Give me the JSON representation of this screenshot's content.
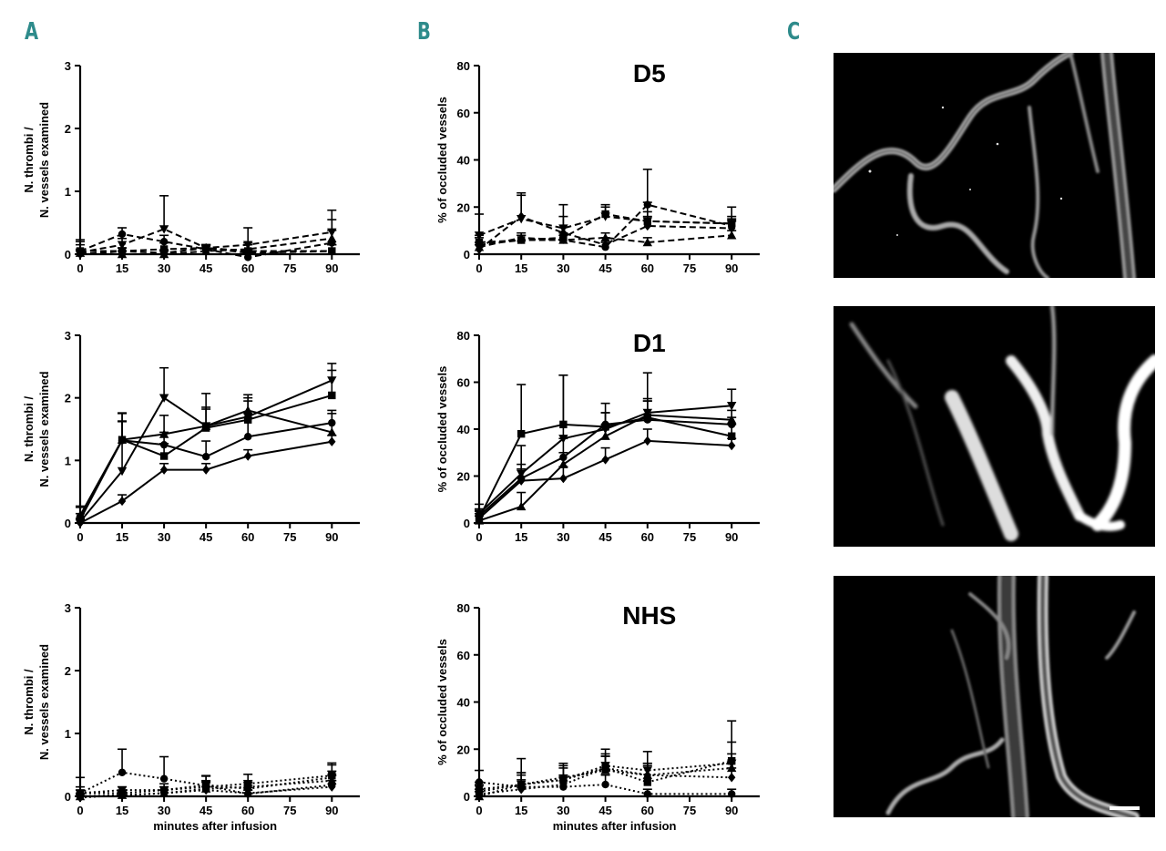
{
  "panel_labels": [
    "A",
    "B",
    "C"
  ],
  "micrograph_names": [
    "micrograph-D5",
    "micrograph-D1",
    "micrograph-NHS"
  ],
  "chart_data": [
    {
      "id": "A1",
      "type": "line",
      "group": "D5",
      "line_style": "dashed",
      "title": "",
      "xlabel": "",
      "ylabel": "N. thrombi / N. vessels examined",
      "ylabel_lines": [
        "N. thrombi /",
        "N. vessels examined"
      ],
      "x_ticks": [
        0,
        15,
        30,
        45,
        60,
        75,
        90
      ],
      "y_ticks": [
        0,
        1,
        2,
        3
      ],
      "xlim": [
        0,
        100
      ],
      "ylim": [
        0,
        3
      ],
      "x": [
        0,
        15,
        30,
        45,
        60,
        90
      ],
      "series": [
        {
          "name": "circle",
          "values": [
            0.05,
            0.32,
            0.2,
            0.08,
            -0.05,
            0.18
          ],
          "err": [
            0.15,
            0.1,
            0.1,
            0.05,
            0.1,
            0.2
          ]
        },
        {
          "name": "square",
          "values": [
            0.05,
            0.05,
            0.08,
            0.1,
            0.05,
            0.05
          ],
          "err": [
            0.1,
            0.05,
            0.1,
            0.05,
            0.1,
            0.1
          ]
        },
        {
          "name": "triangle",
          "values": [
            0.02,
            0.0,
            0.0,
            0.05,
            0.08,
            0.25
          ],
          "err": [
            0.05,
            0.05,
            0.05,
            0.05,
            0.1,
            0.3
          ]
        },
        {
          "name": "inverted-triangle",
          "values": [
            0.03,
            0.15,
            0.4,
            0.1,
            0.15,
            0.35
          ],
          "err": [
            0.2,
            0.1,
            0.53,
            0.05,
            0.27,
            0.35
          ]
        },
        {
          "name": "diamond",
          "values": [
            0.0,
            0.05,
            0.02,
            0.1,
            0.02,
            0.05
          ],
          "err": [
            0.05,
            0.05,
            0.05,
            0.05,
            0.05,
            0.1
          ]
        }
      ]
    },
    {
      "id": "A2",
      "type": "line",
      "group": "D1",
      "line_style": "solid",
      "title": "",
      "xlabel": "",
      "ylabel": "N. thrombi / N. vessels examined",
      "ylabel_lines": [
        "N. thrombi /",
        "N. vessels examined"
      ],
      "x_ticks": [
        0,
        15,
        30,
        45,
        60,
        75,
        90
      ],
      "y_ticks": [
        0,
        1,
        2,
        3
      ],
      "xlim": [
        0,
        100
      ],
      "ylim": [
        0,
        3
      ],
      "x": [
        0,
        15,
        30,
        45,
        60,
        90
      ],
      "series": [
        {
          "name": "circle",
          "values": [
            0.1,
            1.32,
            1.25,
            1.06,
            1.38,
            1.6
          ],
          "err": [
            0.15,
            0.3,
            0.2,
            0.25,
            0.3,
            0.2
          ]
        },
        {
          "name": "square",
          "values": [
            0.05,
            1.33,
            1.07,
            1.52,
            1.65,
            2.04
          ],
          "err": [
            0.1,
            0.3,
            0.2,
            0.3,
            0.3,
            0.4
          ]
        },
        {
          "name": "triangle",
          "values": [
            0.12,
            1.33,
            1.42,
            1.55,
            1.8,
            1.45
          ],
          "err": [
            0.15,
            0.42,
            0.3,
            0.3,
            0.2,
            0.3
          ]
        },
        {
          "name": "inverted-triangle",
          "values": [
            0.02,
            0.83,
            2.0,
            1.55,
            1.7,
            2.28
          ],
          "err": [
            0.05,
            0.93,
            0.48,
            0.52,
            0.35,
            0.27
          ]
        },
        {
          "name": "diamond",
          "values": [
            0.0,
            0.35,
            0.85,
            0.85,
            1.07,
            1.3
          ],
          "err": [
            0.05,
            0.1,
            0.1,
            0.1,
            0.1,
            0.1
          ]
        }
      ]
    },
    {
      "id": "A3",
      "type": "line",
      "group": "NHS",
      "line_style": "dotted",
      "title": "",
      "xlabel": "minutes after infusion",
      "ylabel": "N. thrombi / N. vessels examined",
      "ylabel_lines": [
        "N. thrombi /",
        "N. vessels examined"
      ],
      "x_ticks": [
        0,
        15,
        30,
        45,
        60,
        75,
        90
      ],
      "y_ticks": [
        0,
        1,
        2,
        3
      ],
      "xlim": [
        0,
        100
      ],
      "ylim": [
        0,
        3
      ],
      "x": [
        0,
        15,
        30,
        45,
        60,
        90
      ],
      "series": [
        {
          "name": "circle",
          "values": [
            0.05,
            0.38,
            0.28,
            0.17,
            0.04,
            0.18
          ],
          "err": [
            0.25,
            0.37,
            0.35,
            0.15,
            0.1,
            0.15
          ]
        },
        {
          "name": "square",
          "values": [
            0.05,
            0.05,
            0.1,
            0.15,
            0.2,
            0.33
          ],
          "err": [
            0.1,
            0.05,
            0.1,
            0.1,
            0.15,
            0.2
          ]
        },
        {
          "name": "triangle",
          "values": [
            0.0,
            0.02,
            0.05,
            0.12,
            0.15,
            0.25
          ],
          "err": [
            0.05,
            0.05,
            0.05,
            0.1,
            0.1,
            0.15
          ]
        },
        {
          "name": "inverted-triangle",
          "values": [
            0.05,
            0.1,
            0.1,
            0.18,
            0.12,
            0.3
          ],
          "err": [
            0.05,
            0.05,
            0.05,
            0.15,
            0.1,
            0.2
          ]
        },
        {
          "name": "diamond",
          "values": [
            -0.02,
            0.02,
            0.05,
            0.1,
            0.05,
            0.15
          ],
          "err": [
            0.05,
            0.05,
            0.05,
            0.05,
            0.05,
            0.1
          ]
        }
      ]
    },
    {
      "id": "B1",
      "type": "line",
      "group": "D5",
      "line_style": "dashed",
      "title": "D5",
      "xlabel": "",
      "ylabel": "% of occluded vessels",
      "x_ticks": [
        0,
        15,
        30,
        45,
        60,
        75,
        90
      ],
      "y_ticks": [
        0,
        20,
        40,
        60,
        80
      ],
      "xlim": [
        0,
        100
      ],
      "ylim": [
        0,
        80
      ],
      "x": [
        0,
        15,
        30,
        45,
        60,
        90
      ],
      "series": [
        {
          "name": "circle",
          "values": [
            4,
            6,
            6,
            3,
            21,
            12
          ],
          "err": [
            3,
            2,
            2,
            2,
            15,
            3
          ]
        },
        {
          "name": "square",
          "values": [
            5,
            6,
            7,
            17,
            14,
            13
          ],
          "err": [
            3,
            2,
            2,
            3,
            4,
            3
          ]
        },
        {
          "name": "triangle",
          "values": [
            3,
            7,
            6,
            7,
            5,
            8
          ],
          "err": [
            2,
            2,
            2,
            2,
            2,
            2
          ]
        },
        {
          "name": "inverted-triangle",
          "values": [
            8,
            15,
            11,
            16,
            14,
            13
          ],
          "err": [
            9,
            11,
            10,
            5,
            8,
            7
          ]
        },
        {
          "name": "diamond",
          "values": [
            2,
            16,
            9,
            4,
            12,
            11
          ],
          "err": [
            2,
            9,
            7,
            3,
            4,
            3
          ]
        }
      ]
    },
    {
      "id": "B2",
      "type": "line",
      "group": "D1",
      "line_style": "solid",
      "title": "D1",
      "xlabel": "",
      "ylabel": "% of occluded vessels",
      "x_ticks": [
        0,
        15,
        30,
        45,
        60,
        75,
        90
      ],
      "y_ticks": [
        0,
        20,
        40,
        60,
        80
      ],
      "xlim": [
        0,
        100
      ],
      "ylim": [
        0,
        80
      ],
      "x": [
        0,
        15,
        30,
        45,
        60,
        90
      ],
      "series": [
        {
          "name": "circle",
          "values": [
            3,
            19,
            28,
            42,
            44,
            42
          ],
          "err": [
            3,
            6,
            8,
            5,
            8,
            3
          ]
        },
        {
          "name": "square",
          "values": [
            2,
            38,
            42,
            41,
            45,
            37
          ],
          "err": [
            3,
            21,
            21,
            10,
            8,
            5
          ]
        },
        {
          "name": "triangle",
          "values": [
            1,
            7,
            25,
            37,
            46,
            44
          ],
          "err": [
            2,
            6,
            5,
            5,
            6,
            4
          ]
        },
        {
          "name": "inverted-triangle",
          "values": [
            4,
            21,
            36,
            40,
            47,
            50
          ],
          "err": [
            4,
            12,
            27,
            7,
            17,
            7
          ]
        },
        {
          "name": "diamond",
          "values": [
            2,
            18,
            19,
            27,
            35,
            33
          ],
          "err": [
            2,
            5,
            5,
            5,
            5,
            3
          ]
        }
      ]
    },
    {
      "id": "B3",
      "type": "line",
      "group": "NHS",
      "line_style": "dotted",
      "title": "NHS",
      "xlabel": "minutes after infusion",
      "ylabel": "% of occluded vessels",
      "x_ticks": [
        0,
        15,
        30,
        45,
        60,
        75,
        90
      ],
      "y_ticks": [
        0,
        20,
        40,
        60,
        80
      ],
      "xlim": [
        0,
        100
      ],
      "ylim": [
        0,
        80
      ],
      "x": [
        0,
        15,
        30,
        45,
        60,
        90
      ],
      "series": [
        {
          "name": "circle",
          "values": [
            6,
            4,
            4,
            5,
            1,
            1
          ],
          "err": [
            5,
            5,
            4,
            4,
            2,
            2
          ]
        },
        {
          "name": "square",
          "values": [
            2,
            5,
            7,
            12,
            6,
            15
          ],
          "err": [
            3,
            5,
            5,
            6,
            8,
            17
          ]
        },
        {
          "name": "triangle",
          "values": [
            0,
            5,
            8,
            11,
            9,
            12
          ],
          "err": [
            2,
            5,
            5,
            6,
            5,
            6
          ]
        },
        {
          "name": "inverted-triangle",
          "values": [
            3,
            5,
            7,
            13,
            11,
            14
          ],
          "err": [
            3,
            11,
            7,
            7,
            8,
            9
          ]
        },
        {
          "name": "diamond",
          "values": [
            1,
            3,
            5,
            12,
            9,
            8
          ],
          "err": [
            2,
            4,
            4,
            5,
            4,
            4
          ]
        }
      ]
    }
  ]
}
